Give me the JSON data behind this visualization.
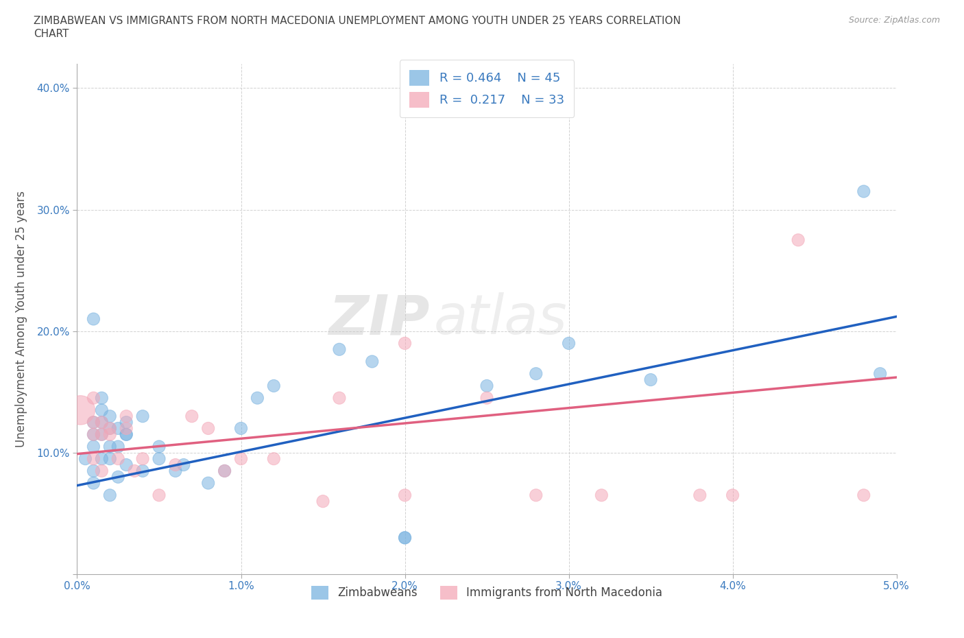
{
  "title_line1": "ZIMBABWEAN VS IMMIGRANTS FROM NORTH MACEDONIA UNEMPLOYMENT AMONG YOUTH UNDER 25 YEARS CORRELATION",
  "title_line2": "CHART",
  "source": "Source: ZipAtlas.com",
  "ylabel_label": "Unemployment Among Youth under 25 years",
  "xlim": [
    0.0,
    0.05
  ],
  "ylim": [
    0.0,
    0.42
  ],
  "xticks": [
    0.0,
    0.01,
    0.02,
    0.03,
    0.04,
    0.05
  ],
  "yticks": [
    0.0,
    0.1,
    0.2,
    0.3,
    0.4
  ],
  "xticklabels": [
    "0.0%",
    "1.0%",
    "2.0%",
    "3.0%",
    "4.0%",
    "5.0%"
  ],
  "yticklabels": [
    "",
    "10.0%",
    "20.0%",
    "30.0%",
    "40.0%"
  ],
  "blue_color": "#7ab3e0",
  "pink_color": "#f4a8b8",
  "blue_line_color": "#2060c0",
  "pink_line_color": "#e06080",
  "legend_R1": "0.464",
  "legend_N1": "45",
  "legend_R2": "0.217",
  "legend_N2": "33",
  "label1": "Zimbabweans",
  "label2": "Immigrants from North Macedonia",
  "watermark_ZIP": "ZIP",
  "watermark_atlas": "atlas",
  "blue_line_x0": 0.0,
  "blue_line_y0": 0.073,
  "blue_line_x1": 0.05,
  "blue_line_y1": 0.212,
  "pink_line_x0": 0.0,
  "pink_line_y0": 0.099,
  "pink_line_x1": 0.05,
  "pink_line_y1": 0.162,
  "blue_x": [
    0.0005,
    0.001,
    0.001,
    0.001,
    0.001,
    0.001,
    0.001,
    0.0015,
    0.0015,
    0.0015,
    0.0015,
    0.0015,
    0.002,
    0.002,
    0.002,
    0.002,
    0.002,
    0.0025,
    0.0025,
    0.0025,
    0.003,
    0.003,
    0.003,
    0.003,
    0.004,
    0.004,
    0.005,
    0.005,
    0.006,
    0.0065,
    0.008,
    0.009,
    0.01,
    0.011,
    0.012,
    0.016,
    0.018,
    0.02,
    0.02,
    0.025,
    0.028,
    0.03,
    0.035,
    0.048,
    0.049
  ],
  "blue_y": [
    0.095,
    0.105,
    0.115,
    0.125,
    0.085,
    0.075,
    0.21,
    0.095,
    0.115,
    0.125,
    0.135,
    0.145,
    0.095,
    0.105,
    0.12,
    0.13,
    0.065,
    0.105,
    0.12,
    0.08,
    0.115,
    0.125,
    0.115,
    0.09,
    0.085,
    0.13,
    0.095,
    0.105,
    0.085,
    0.09,
    0.075,
    0.085,
    0.12,
    0.145,
    0.155,
    0.185,
    0.175,
    0.03,
    0.03,
    0.155,
    0.165,
    0.19,
    0.16,
    0.315,
    0.165
  ],
  "blue_sizes": [
    10,
    10,
    10,
    10,
    10,
    10,
    10,
    10,
    10,
    10,
    10,
    10,
    10,
    10,
    10,
    10,
    10,
    10,
    10,
    10,
    10,
    10,
    10,
    10,
    10,
    10,
    10,
    10,
    10,
    10,
    10,
    10,
    10,
    10,
    10,
    10,
    10,
    10,
    10,
    10,
    10,
    10,
    10,
    10,
    10
  ],
  "pink_x": [
    0.0002,
    0.001,
    0.001,
    0.001,
    0.001,
    0.0015,
    0.0015,
    0.0015,
    0.002,
    0.002,
    0.0025,
    0.003,
    0.003,
    0.0035,
    0.004,
    0.005,
    0.006,
    0.007,
    0.008,
    0.009,
    0.01,
    0.012,
    0.015,
    0.016,
    0.02,
    0.02,
    0.025,
    0.028,
    0.032,
    0.038,
    0.04,
    0.044,
    0.048
  ],
  "pink_y": [
    0.135,
    0.115,
    0.125,
    0.095,
    0.145,
    0.115,
    0.125,
    0.085,
    0.12,
    0.115,
    0.095,
    0.13,
    0.12,
    0.085,
    0.095,
    0.065,
    0.09,
    0.13,
    0.12,
    0.085,
    0.095,
    0.095,
    0.06,
    0.145,
    0.19,
    0.065,
    0.145,
    0.065,
    0.065,
    0.065,
    0.065,
    0.275,
    0.065
  ],
  "pink_sizes": [
    40,
    10,
    10,
    10,
    10,
    10,
    10,
    10,
    10,
    10,
    10,
    10,
    10,
    10,
    10,
    10,
    10,
    10,
    10,
    10,
    10,
    10,
    10,
    10,
    10,
    10,
    10,
    10,
    10,
    10,
    10,
    10,
    10
  ]
}
